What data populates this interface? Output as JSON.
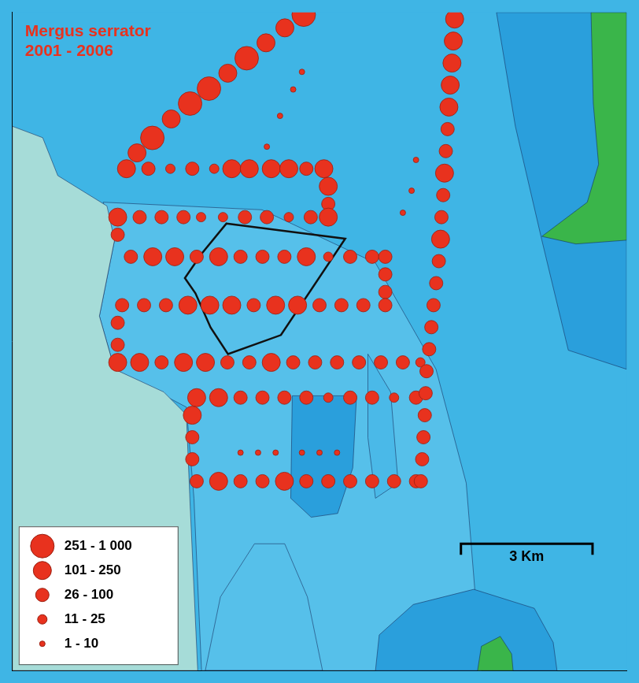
{
  "chart_data": {
    "type": "bubble",
    "title": [
      "Mergus serrator",
      "2001 - 2006"
    ],
    "xlim": [
      0,
      14
    ],
    "ylim": [
      0,
      14.95
    ],
    "tick_labels": false,
    "grid": false,
    "color": "#e8321e",
    "legend": "bottom-left",
    "size_classes": [
      {
        "label": "1 - 10",
        "min": 1,
        "max": 10
      },
      {
        "label": "11 - 25",
        "min": 11,
        "max": 25
      },
      {
        "label": "26 - 100",
        "min": 26,
        "max": 100
      },
      {
        "label": "101 - 250",
        "min": 101,
        "max": 250
      },
      {
        "label": "251 - 1 000",
        "min": 251,
        "max": 1000
      }
    ],
    "scale_bar": {
      "length": 3,
      "label": "3 Km"
    },
    "x": [
      2.84,
      3.19,
      3.62,
      4.05,
      4.48,
      4.91,
      5.34,
      5.78,
      6.21,
      6.64,
      2.6,
      3.1,
      3.6,
      4.1,
      4.6,
      5.0,
      5.4,
      5.9,
      6.3,
      6.7,
      7.1,
      7.2,
      7.2,
      2.4,
      2.9,
      3.4,
      3.9,
      4.3,
      4.8,
      5.3,
      5.8,
      6.3,
      6.8,
      7.2,
      2.4,
      2.7,
      3.2,
      3.7,
      4.2,
      4.7,
      5.2,
      5.7,
      6.2,
      6.7,
      7.2,
      7.7,
      8.2,
      8.5,
      8.5,
      8.5,
      2.5,
      3.0,
      3.5,
      4.0,
      4.5,
      5.0,
      5.5,
      6.0,
      6.5,
      7.0,
      7.5,
      8.0,
      8.5,
      2.4,
      2.4,
      2.4,
      2.9,
      3.4,
      3.9,
      4.4,
      4.9,
      5.4,
      5.9,
      6.4,
      6.9,
      7.4,
      7.9,
      8.4,
      8.9,
      9.3,
      4.2,
      4.7,
      5.2,
      5.7,
      6.2,
      6.7,
      7.2,
      7.7,
      8.2,
      8.7,
      9.2,
      4.1,
      4.1,
      4.1,
      4.2,
      4.7,
      5.2,
      5.7,
      6.2,
      6.7,
      7.2,
      7.7,
      8.2,
      8.7,
      9.2,
      10.08,
      10.05,
      10.02,
      9.98,
      9.95,
      9.92,
      9.88,
      9.85,
      9.82,
      9.78,
      9.76,
      9.72,
      9.66,
      9.6,
      9.55,
      9.5,
      9.44,
      9.42,
      9.4,
      9.37,
      9.34,
      9.31,
      5.8,
      6.1,
      6.4,
      6.6,
      5.2,
      5.6,
      6.0,
      6.6,
      7.0,
      7.4,
      8.9,
      9.1,
      9.2
    ],
    "y": [
      11.76,
      12.1,
      12.53,
      12.88,
      13.22,
      13.57,
      13.91,
      14.26,
      14.6,
      14.9,
      11.4,
      11.4,
      11.4,
      11.4,
      11.4,
      11.4,
      11.4,
      11.4,
      11.4,
      11.4,
      11.4,
      11.0,
      10.6,
      10.3,
      10.3,
      10.3,
      10.3,
      10.3,
      10.3,
      10.3,
      10.3,
      10.3,
      10.3,
      10.3,
      9.9,
      9.4,
      9.4,
      9.4,
      9.4,
      9.4,
      9.4,
      9.4,
      9.4,
      9.4,
      9.4,
      9.4,
      9.4,
      9.4,
      9.0,
      8.6,
      8.3,
      8.3,
      8.3,
      8.3,
      8.3,
      8.3,
      8.3,
      8.3,
      8.3,
      8.3,
      8.3,
      8.3,
      8.3,
      7.9,
      7.4,
      7.0,
      7.0,
      7.0,
      7.0,
      7.0,
      7.0,
      7.0,
      7.0,
      7.0,
      7.0,
      7.0,
      7.0,
      7.0,
      7.0,
      7.0,
      6.2,
      6.2,
      6.2,
      6.2,
      6.2,
      6.2,
      6.2,
      6.2,
      6.2,
      6.2,
      6.2,
      5.8,
      5.3,
      4.8,
      4.3,
      4.3,
      4.3,
      4.3,
      4.3,
      4.3,
      4.3,
      4.3,
      4.3,
      4.3,
      4.3,
      14.8,
      14.3,
      13.8,
      13.3,
      12.8,
      12.3,
      11.8,
      11.3,
      10.8,
      10.3,
      9.8,
      9.3,
      8.8,
      8.3,
      7.8,
      7.3,
      6.8,
      6.3,
      5.8,
      5.3,
      4.8,
      4.3,
      11.9,
      12.6,
      13.2,
      13.6,
      4.95,
      4.95,
      4.95,
      4.95,
      4.95,
      4.95,
      10.4,
      10.9,
      11.6
    ],
    "size_class": [
      3,
      4,
      3,
      4,
      4,
      3,
      4,
      3,
      3,
      4,
      3,
      2,
      1,
      2,
      1,
      3,
      3,
      3,
      3,
      2,
      3,
      3,
      2,
      3,
      2,
      2,
      2,
      1,
      1,
      2,
      2,
      1,
      2,
      3,
      2,
      2,
      3,
      3,
      2,
      3,
      2,
      2,
      2,
      3,
      1,
      2,
      2,
      2,
      2,
      2,
      2,
      2,
      2,
      3,
      3,
      3,
      2,
      3,
      3,
      2,
      2,
      2,
      2,
      2,
      2,
      3,
      3,
      2,
      3,
      3,
      2,
      2,
      3,
      2,
      2,
      2,
      2,
      2,
      2,
      1,
      3,
      3,
      2,
      2,
      2,
      2,
      1,
      2,
      2,
      1,
      2,
      3,
      2,
      2,
      2,
      3,
      2,
      2,
      3,
      2,
      2,
      2,
      2,
      2,
      2,
      3,
      3,
      3,
      3,
      3,
      2,
      2,
      3,
      2,
      2,
      3,
      2,
      2,
      2,
      2,
      2,
      2,
      2,
      2,
      2,
      2,
      2,
      0,
      0,
      0,
      0,
      0,
      0,
      0,
      0,
      0,
      0,
      0,
      0,
      0
    ]
  }
}
